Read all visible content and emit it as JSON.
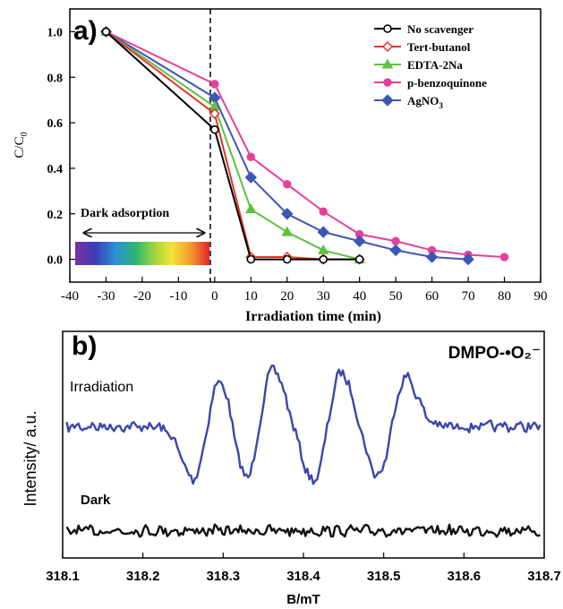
{
  "chart_data": [
    {
      "type": "line",
      "panel_label": "a)",
      "xlabel": "Irradiation time (min)",
      "ylabel": "C/C",
      "ylabel_sub": "0",
      "xlim": [
        -40,
        90
      ],
      "ylim": [
        -0.1,
        1.1
      ],
      "xticks": [
        "-40",
        "-30",
        "-20",
        "-10",
        "0",
        "10",
        "20",
        "30",
        "40",
        "50",
        "60",
        "70",
        "80",
        "90"
      ],
      "yticks": [
        "0.0",
        "0.2",
        "0.4",
        "0.6",
        "0.8",
        "1.0"
      ],
      "annotation": "Dark adsorption",
      "legend_position": "top-right",
      "series": [
        {
          "name": "No scavenger",
          "color": "#000000",
          "marker": "circle-open",
          "x": [
            -30,
            0,
            10,
            20,
            30,
            40
          ],
          "y": [
            1.0,
            0.57,
            0.0,
            0.0,
            0.0,
            0.0
          ]
        },
        {
          "name": "Tert-butanol",
          "color": "#e8332a",
          "marker": "diamond-open",
          "x": [
            -30,
            0,
            10,
            20,
            30,
            40
          ],
          "y": [
            1.0,
            0.64,
            0.01,
            0.01,
            0.0,
            0.0
          ]
        },
        {
          "name": "EDTA-2Na",
          "color": "#5dc23f",
          "marker": "triangle",
          "x": [
            -30,
            0,
            10,
            20,
            30,
            40
          ],
          "y": [
            1.0,
            0.67,
            0.22,
            0.12,
            0.04,
            0.0
          ]
        },
        {
          "name": "p-benzoquinone",
          "color": "#e8409a",
          "marker": "circle",
          "x": [
            -30,
            0,
            10,
            20,
            30,
            40,
            50,
            60,
            70,
            80
          ],
          "y": [
            1.0,
            0.77,
            0.45,
            0.33,
            0.21,
            0.11,
            0.08,
            0.04,
            0.02,
            0.01
          ]
        },
        {
          "name": "AgNO",
          "name_sub": "3",
          "color": "#3b57b6",
          "marker": "diamond",
          "x": [
            -30,
            0,
            10,
            20,
            30,
            40,
            50,
            60,
            70
          ],
          "y": [
            1.0,
            0.71,
            0.36,
            0.2,
            0.12,
            0.08,
            0.04,
            0.01,
            0.0
          ]
        }
      ]
    },
    {
      "type": "line",
      "panel_label": "b)",
      "title": "DMPO-•O₂⁻",
      "xlabel": "B/mT",
      "ylabel": "Intensity/ a.u.",
      "xlim": [
        318.1,
        318.7
      ],
      "xticks": [
        "318.1",
        "318.2",
        "318.3",
        "318.4",
        "318.5",
        "318.6",
        "318.7"
      ],
      "series": [
        {
          "name": "Irradiation",
          "color": "#3b45b0",
          "baseline_fraction": 0.42,
          "signal_peaks": [
            {
              "x": 318.28,
              "amp": 1.0
            },
            {
              "x": 318.345,
              "amp": 1.1
            },
            {
              "x": 318.43,
              "amp": 1.05
            },
            {
              "x": 318.51,
              "amp": 0.95
            }
          ]
        },
        {
          "name": "Dark",
          "color": "#111111",
          "baseline_fraction": 0.88,
          "signal_peaks": []
        }
      ]
    }
  ]
}
